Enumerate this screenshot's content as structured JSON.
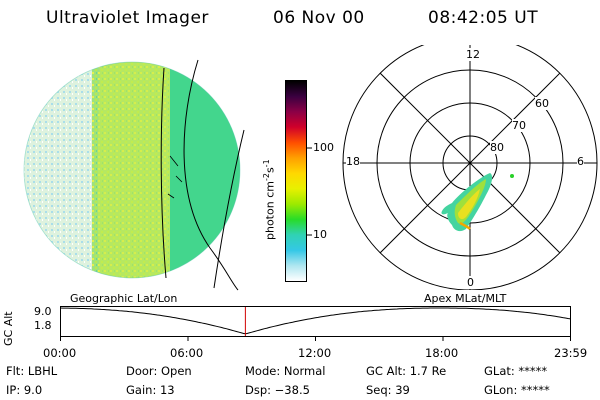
{
  "header": {
    "instrument": "Ultraviolet Imager",
    "date": "06 Nov 00",
    "time": "08:42:05 UT"
  },
  "colorbar": {
    "unit_label": "photon cm",
    "unit_exp1": "-2",
    "unit_mid": "s",
    "unit_exp2": "-1",
    "tick_top": "100",
    "tick_bottom": "10",
    "colors": [
      "#000000",
      "#3a0040",
      "#8b0046",
      "#d0002a",
      "#ff4e00",
      "#ffa000",
      "#ffd800",
      "#e8f000",
      "#9eea00",
      "#28dc28",
      "#30d2b4",
      "#34c8e6",
      "#aee6f0",
      "#ffffff"
    ]
  },
  "polar": {
    "mlt_top": "12",
    "mlt_left": "18",
    "mlt_right": "6",
    "mlt_bottom": "0",
    "lat_60": "60",
    "lat_70": "70",
    "lat_80": "80"
  },
  "timeline": {
    "y_label": "GC Alt",
    "y_top": "9.0",
    "y_bottom": "1.8",
    "left_caption": "Geographic Lat/Lon",
    "right_caption": "Apex MLat/MLT",
    "ticks": [
      "00:00",
      "06:00",
      "12:00",
      "18:00",
      "23:59"
    ],
    "current_hour": 8.7
  },
  "status": {
    "filter": "Flt: LBHL",
    "door": "Door: Open",
    "mode": "Mode: Normal",
    "gc_alt": "GC Alt: 1.7 Re",
    "glat": "GLat: *****",
    "ip": "IP: 9.0",
    "gain": "Gain: 13",
    "dsp": "Dsp:  −38.5",
    "seq": "Seq: 39",
    "glon": "GLon: *****"
  }
}
